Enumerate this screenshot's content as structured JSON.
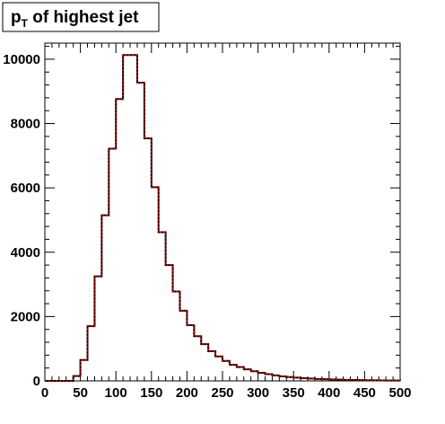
{
  "chart_data": {
    "type": "bar",
    "title": {
      "main": "p",
      "subscript": "T",
      "rest": " of highest jet"
    },
    "xlabel": "",
    "ylabel": "",
    "xlim": [
      0,
      500
    ],
    "ylim": [
      0,
      10500
    ],
    "bin_width": 10,
    "x_ticks": [
      0,
      50,
      100,
      150,
      200,
      250,
      300,
      350,
      400,
      450,
      500
    ],
    "y_ticks": [
      0,
      2000,
      4000,
      6000,
      8000,
      10000
    ],
    "grid": false,
    "legend": "none",
    "colors": {
      "histogram_black": "#000000",
      "histogram_red": "#cc0000",
      "frame": "#000000"
    },
    "series": [
      {
        "values": [
          0,
          0,
          0,
          0,
          150,
          650,
          1700,
          3250,
          5150,
          7220,
          8760,
          10130,
          10130,
          9270,
          7540,
          6020,
          4620,
          3600,
          2780,
          2180,
          1730,
          1390,
          1140,
          920,
          760,
          620,
          500,
          430,
          360,
          300,
          250,
          210,
          170,
          140,
          120,
          100,
          85,
          72,
          60,
          52,
          45,
          38,
          32,
          28,
          24,
          20,
          17,
          15,
          12,
          10
        ]
      }
    ]
  }
}
